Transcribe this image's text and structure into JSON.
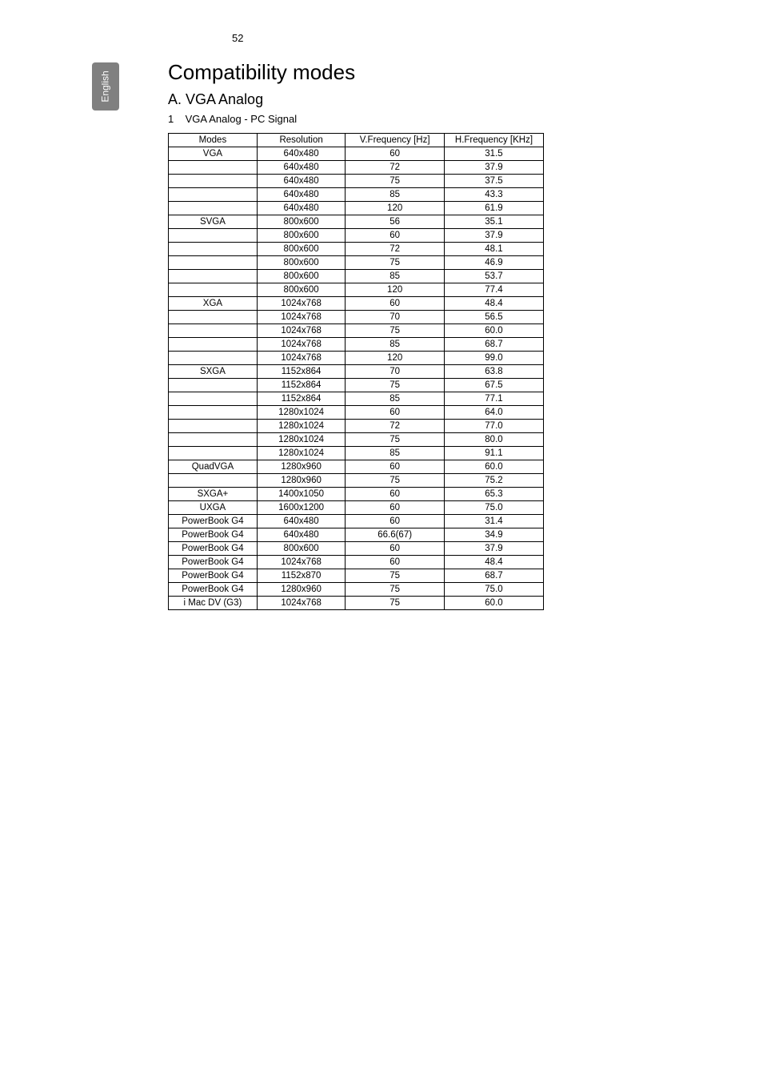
{
  "page_number": "52",
  "side_tab": "English",
  "title": "Compatibility modes",
  "section": {
    "heading": "A. VGA Analog",
    "list_number": "1",
    "list_text": "VGA Analog - PC Signal"
  },
  "table": {
    "columns": [
      "Modes",
      "Resolution",
      "V.Frequency [Hz]",
      "H.Frequency [KHz]"
    ],
    "column_widths": [
      "110px",
      "110px",
      "125px",
      "125px"
    ],
    "rows": [
      [
        "VGA",
        "640x480",
        "60",
        "31.5"
      ],
      [
        "",
        "640x480",
        "72",
        "37.9"
      ],
      [
        "",
        "640x480",
        "75",
        "37.5"
      ],
      [
        "",
        "640x480",
        "85",
        "43.3"
      ],
      [
        "",
        "640x480",
        "120",
        "61.9"
      ],
      [
        "SVGA",
        "800x600",
        "56",
        "35.1"
      ],
      [
        "",
        "800x600",
        "60",
        "37.9"
      ],
      [
        "",
        "800x600",
        "72",
        "48.1"
      ],
      [
        "",
        "800x600",
        "75",
        "46.9"
      ],
      [
        "",
        "800x600",
        "85",
        "53.7"
      ],
      [
        "",
        "800x600",
        "120",
        "77.4"
      ],
      [
        "XGA",
        "1024x768",
        "60",
        "48.4"
      ],
      [
        "",
        "1024x768",
        "70",
        "56.5"
      ],
      [
        "",
        "1024x768",
        "75",
        "60.0"
      ],
      [
        "",
        "1024x768",
        "85",
        "68.7"
      ],
      [
        "",
        "1024x768",
        "120",
        "99.0"
      ],
      [
        "SXGA",
        "1152x864",
        "70",
        "63.8"
      ],
      [
        "",
        "1152x864",
        "75",
        "67.5"
      ],
      [
        "",
        "1152x864",
        "85",
        "77.1"
      ],
      [
        "",
        "1280x1024",
        "60",
        "64.0"
      ],
      [
        "",
        "1280x1024",
        "72",
        "77.0"
      ],
      [
        "",
        "1280x1024",
        "75",
        "80.0"
      ],
      [
        "",
        "1280x1024",
        "85",
        "91.1"
      ],
      [
        "QuadVGA",
        "1280x960",
        "60",
        "60.0"
      ],
      [
        "",
        "1280x960",
        "75",
        "75.2"
      ],
      [
        "SXGA+",
        "1400x1050",
        "60",
        "65.3"
      ],
      [
        "UXGA",
        "1600x1200",
        "60",
        "75.0"
      ],
      [
        "PowerBook G4",
        "640x480",
        "60",
        "31.4"
      ],
      [
        "PowerBook G4",
        "640x480",
        "66.6(67)",
        "34.9"
      ],
      [
        "PowerBook G4",
        "800x600",
        "60",
        "37.9"
      ],
      [
        "PowerBook G4",
        "1024x768",
        "60",
        "48.4"
      ],
      [
        "PowerBook G4",
        "1152x870",
        "75",
        "68.7"
      ],
      [
        "PowerBook G4",
        "1280x960",
        "75",
        "75.0"
      ],
      [
        "i Mac DV (G3)",
        "1024x768",
        "75",
        "60.0"
      ]
    ]
  },
  "colors": {
    "tab_bg": "#808080",
    "tab_text": "#ffffff",
    "border": "#000000",
    "page_bg": "#ffffff"
  }
}
